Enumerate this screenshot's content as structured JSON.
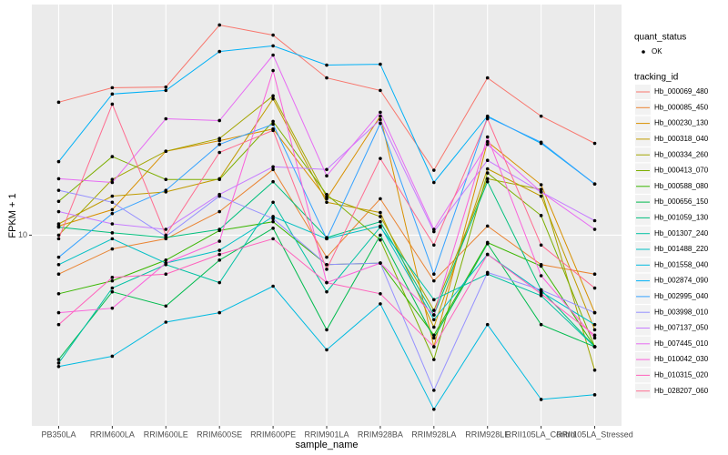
{
  "chart_data": {
    "type": "line",
    "x_label": "sample_name",
    "y_label": "FPKM + 1",
    "log_y": true,
    "grid": true,
    "ylim": [
      2,
      70
    ],
    "yticks": [
      10
    ],
    "categories": [
      "PB350LA",
      "RRIM600LA",
      "RRIM600LE",
      "RRIM600SE",
      "RRIM600PE",
      "RRIM901LA",
      "RRIM928BA",
      "RRIM928LA",
      "RRIM928LE",
      "RRII105LA_Control",
      "RRII105LA_Stressed"
    ],
    "point_legend": {
      "title": "quant_status",
      "labels": [
        "OK"
      ]
    },
    "legend_title": "tracking_id",
    "series": [
      {
        "name": "Hb_000069_480",
        "color": "#F8766D",
        "values": [
          30.7,
          34.7,
          34.9,
          58.9,
          54.1,
          37.7,
          33.9,
          17.3,
          37.7,
          27.3,
          21.7
        ]
      },
      {
        "name": "Hb_000085_450",
        "color": "#EA8331",
        "values": [
          7.2,
          8.9,
          9.7,
          12.2,
          17.4,
          8.3,
          13.6,
          6.8,
          10.8,
          7.8,
          7.2
        ]
      },
      {
        "name": "Hb_000230_130",
        "color": "#D89000",
        "values": [
          10.8,
          12.4,
          20.3,
          22.2,
          24.5,
          13.6,
          27.3,
          3.9,
          22.0,
          15.3,
          5.2
        ]
      },
      {
        "name": "Hb_000318_040",
        "color": "#C09B00",
        "values": [
          11.0,
          13.9,
          14.4,
          16.1,
          31.6,
          13.2,
          12.1,
          4.6,
          17.5,
          13.9,
          4.5
        ]
      },
      {
        "name": "Hb_000334_260",
        "color": "#A3A500",
        "values": [
          10.0,
          16.0,
          20.3,
          22.6,
          32.4,
          13.8,
          11.7,
          5.3,
          16.1,
          14.7,
          3.2
        ]
      },
      {
        "name": "Hb_000413_070",
        "color": "#7CAE00",
        "values": [
          13.3,
          19.4,
          16.0,
          16.0,
          26.1,
          14.1,
          9.6,
          3.5,
          16.9,
          11.8,
          3.9
        ]
      },
      {
        "name": "Hb_000588_080",
        "color": "#39B600",
        "values": [
          6.1,
          6.8,
          8.1,
          10.4,
          11.2,
          7.8,
          7.9,
          4.3,
          9.4,
          7.7,
          3.9
        ]
      },
      {
        "name": "Hb_000656_150",
        "color": "#00BB4E",
        "values": [
          3.5,
          6.2,
          5.5,
          8.1,
          10.6,
          4.5,
          10.0,
          4.2,
          9.3,
          4.7,
          3.9
        ]
      },
      {
        "name": "Hb_001059_130",
        "color": "#00BF7D",
        "values": [
          10.7,
          10.2,
          9.8,
          10.5,
          15.7,
          9.8,
          11.2,
          5.1,
          15.7,
          6.3,
          3.9
        ]
      },
      {
        "name": "Hb_001307_240",
        "color": "#00C1A3",
        "values": [
          3.4,
          6.4,
          7.8,
          6.7,
          13.2,
          6.2,
          10.7,
          5.8,
          7.2,
          6.0,
          3.9
        ]
      },
      {
        "name": "Hb_001488_220",
        "color": "#00BFC4",
        "values": [
          7.8,
          9.7,
          7.9,
          8.8,
          11.7,
          9.7,
          10.8,
          4.9,
          8.5,
          6.2,
          4.7
        ]
      },
      {
        "name": "Hb_001558_040",
        "color": "#00BAE0",
        "values": [
          3.3,
          3.6,
          4.8,
          5.2,
          6.5,
          3.8,
          5.6,
          2.3,
          4.7,
          2.5,
          2.6
        ]
      },
      {
        "name": "Hb_002874_090",
        "color": "#00B0F6",
        "values": [
          18.6,
          32.9,
          33.9,
          47.1,
          49.4,
          42.0,
          42.3,
          15.6,
          27.3,
          21.7,
          15.4
        ]
      },
      {
        "name": "Hb_002995_040",
        "color": "#35A2FF",
        "values": [
          8.3,
          12.0,
          14.6,
          21.5,
          25.5,
          9.7,
          25.7,
          7.2,
          27.1,
          21.9,
          15.4
        ]
      },
      {
        "name": "Hb_003998_010",
        "color": "#9590FF",
        "values": [
          14.6,
          13.2,
          9.9,
          13.9,
          11.5,
          7.8,
          7.9,
          2.7,
          7.3,
          6.3,
          5.2
        ]
      },
      {
        "name": "Hb_007137_050",
        "color": "#C77CFF",
        "values": [
          12.2,
          11.0,
          10.5,
          14.1,
          17.8,
          17.4,
          26.5,
          10.3,
          18.8,
          14.4,
          11.3
        ]
      },
      {
        "name": "Hb_007445_010",
        "color": "#E76BF3",
        "values": [
          16.1,
          15.6,
          26.7,
          26.3,
          45.7,
          16.5,
          28.2,
          10.5,
          21.5,
          14.4,
          10.5
        ]
      },
      {
        "name": "Hb_010042_030",
        "color": "#FA62DB",
        "values": [
          5.2,
          5.4,
          7.9,
          9.5,
          40.1,
          6.7,
          7.9,
          5.1,
          22.9,
          7.1,
          4.2
        ]
      },
      {
        "name": "Hb_010315_020",
        "color": "#FF62BC",
        "values": [
          4.7,
          7.0,
          7.2,
          8.5,
          9.7,
          6.7,
          6.1,
          3.9,
          8.5,
          6.1,
          4.3
        ]
      },
      {
        "name": "Hb_028207_060",
        "color": "#FF6C90",
        "values": [
          9.7,
          30.2,
          10.0,
          20.1,
          24.2,
          7.5,
          19.1,
          9.2,
          26.7,
          9.2,
          6.4
        ]
      }
    ]
  }
}
